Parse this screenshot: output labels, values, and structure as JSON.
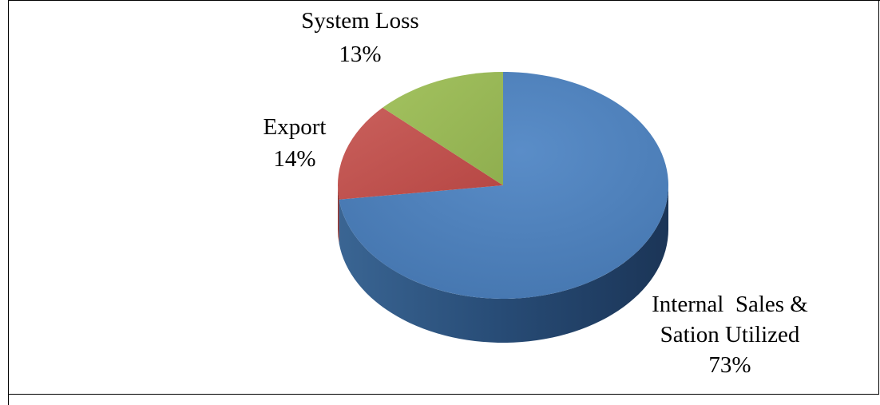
{
  "chart_data": {
    "type": "pie",
    "style": "3d",
    "categories": [
      "Internal  Sales & Sation Utilized",
      "Export",
      "System Loss"
    ],
    "values": [
      73,
      14,
      13
    ],
    "value_unit": "%",
    "colors": [
      "#4f81bd",
      "#c0504d",
      "#9bbb59"
    ],
    "data_labels": [
      {
        "lines": [
          "Internal  Sales &",
          "Sation Utilized"
        ],
        "value": "73%"
      },
      {
        "lines": [
          "Export"
        ],
        "value": "14%"
      },
      {
        "lines": [
          "System Loss"
        ],
        "value": "13%"
      }
    ],
    "legend": "none",
    "grid": false
  }
}
